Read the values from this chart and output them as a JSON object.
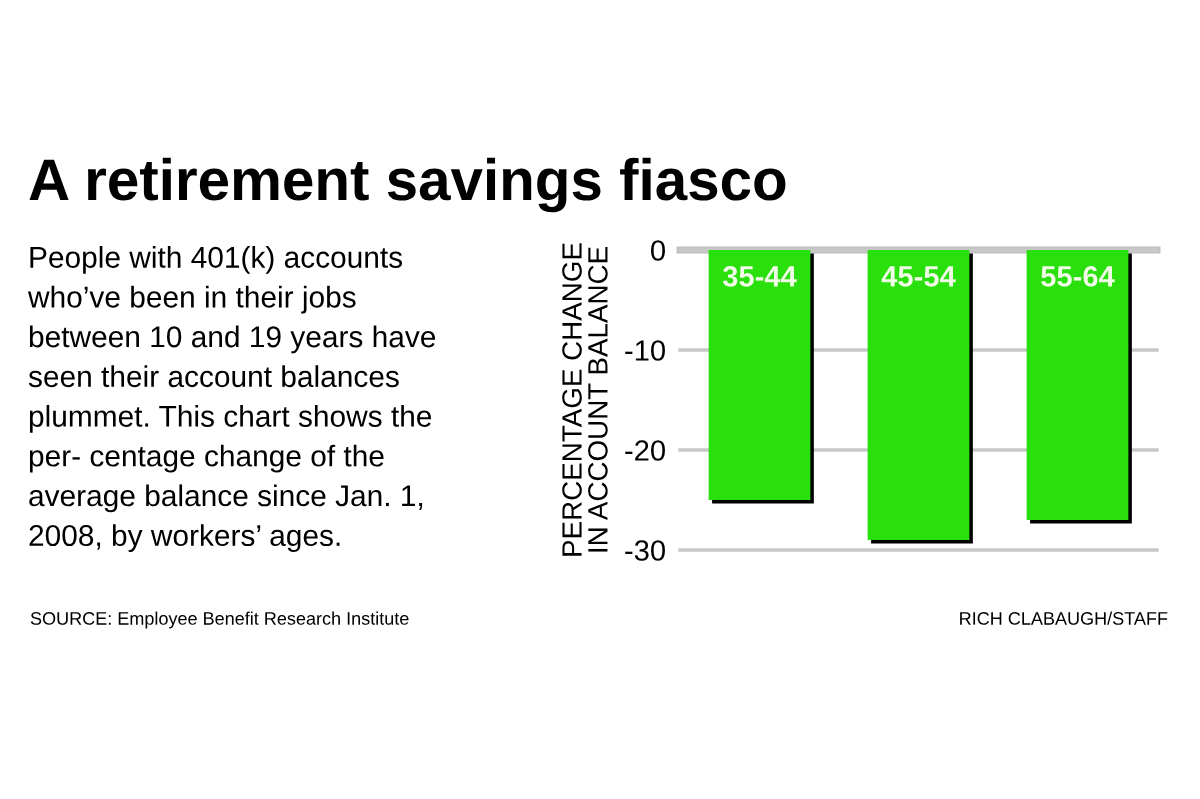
{
  "chart_data": {
    "type": "bar",
    "title": "A retirement savings fiasco",
    "subtitle": "People with 401(k) accounts who’ve been in their jobs between 10 and 19 years have seen their account balances plummet. This chart shows the per- centage change of the average balance since Jan. 1, 2008, by workers’ ages.",
    "ylabel": "PERCENTAGE CHANGE IN ACCOUNT BALANCE",
    "categories": [
      "35-44",
      "45-54",
      "55-64"
    ],
    "values": [
      -25,
      -29,
      -27
    ],
    "color": "#29df0c",
    "ylim": [
      -30,
      0
    ],
    "yticks": [
      0,
      -10,
      -20,
      -30
    ],
    "grid": "y",
    "annotations": [
      "SOURCE: Employee Benefit Research Institute",
      "RICH CLABAUGH/STAFF"
    ]
  }
}
